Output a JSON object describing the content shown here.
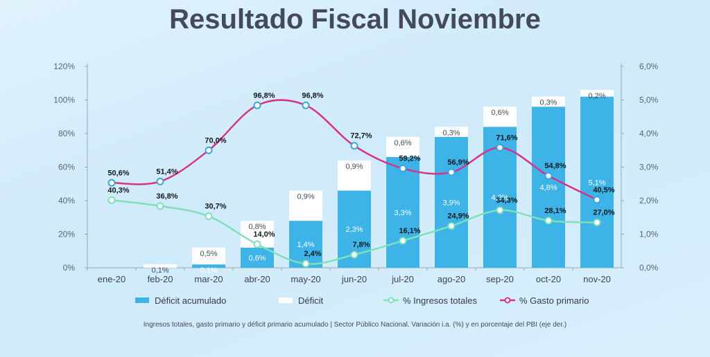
{
  "title": "Resultado Fiscal Noviembre",
  "footnote": "Ingresos totales, gasto primario y déficit primario acumulado | Sector Público Nacional. Variación i.a. (%) y en porcentaje del PBI (eje der.)",
  "legend": {
    "deficit_acumulado": "Déficit acumulado",
    "deficit": "Déficit",
    "ingresos": "% Ingresos totales",
    "gasto": "% Gasto primario"
  },
  "colors": {
    "deficit_acumulado": "#3db3e8",
    "deficit": "#ffffff",
    "ingresos": "#7fe0b8",
    "gasto": "#d6338a",
    "text": "#333b48",
    "axis": "#9aa7b2"
  },
  "chart_data": {
    "type": "bar",
    "categories": [
      "ene-20",
      "feb-20",
      "mar-20",
      "abr-20",
      "may-20",
      "jun-20",
      "jul-20",
      "ago-20",
      "sep-20",
      "oct-20",
      "nov-20"
    ],
    "y_left": {
      "ylim": [
        0,
        120
      ],
      "ticks": [
        "0%",
        "20%",
        "40%",
        "60%",
        "80%",
        "100%",
        "120%"
      ]
    },
    "y_right": {
      "ylim": [
        0,
        6
      ],
      "ticks": [
        "0,0%",
        "1,0%",
        "2,0%",
        "3,0%",
        "4,0%",
        "5,0%",
        "6,0%"
      ]
    },
    "series": [
      {
        "name": "Déficit acumulado",
        "kind": "bar-stack-base",
        "axis": "right",
        "values": [
          0,
          0,
          0.1,
          0.6,
          1.4,
          2.3,
          3.3,
          3.9,
          4.2,
          4.8,
          5.1
        ],
        "labels": [
          "",
          "",
          "0,1%",
          "0,6%",
          "1,4%",
          "2,3%",
          "3,3%",
          "3,9%",
          "4,2%",
          "4,8%",
          "5,1%"
        ]
      },
      {
        "name": "Déficit",
        "kind": "bar-stack-top",
        "axis": "right",
        "values": [
          0,
          0.1,
          0.5,
          0.8,
          0.9,
          0.9,
          0.6,
          0.3,
          0.6,
          0.3,
          0.2
        ],
        "labels": [
          "",
          "0,1%",
          "0,5%",
          "0,8%",
          "0,9%",
          "0,9%",
          "0,6%",
          "0,3%",
          "0,6%",
          "0,3%",
          "0,2%"
        ]
      },
      {
        "name": "% Ingresos totales",
        "kind": "line",
        "axis": "left",
        "values": [
          40.3,
          36.8,
          30.7,
          14.0,
          2.4,
          7.8,
          16.1,
          24.9,
          34.3,
          28.1,
          27.0
        ],
        "labels": [
          "40,3%",
          "36,8%",
          "30,7%",
          "14,0%",
          "2,4%",
          "7,8%",
          "16,1%",
          "24,9%",
          "34,3%",
          "28,1%",
          "27,0%"
        ]
      },
      {
        "name": "% Gasto primario",
        "kind": "line",
        "axis": "left",
        "values": [
          50.6,
          51.4,
          70.0,
          96.8,
          96.8,
          72.7,
          59.2,
          56.9,
          71.6,
          54.8,
          40.5
        ],
        "labels": [
          "50,6%",
          "51,4%",
          "70,0%",
          "96,8%",
          "96,8%",
          "72,7%",
          "59,2%",
          "56,9%",
          "71,6%",
          "54,8%",
          "40,5%"
        ]
      }
    ]
  }
}
